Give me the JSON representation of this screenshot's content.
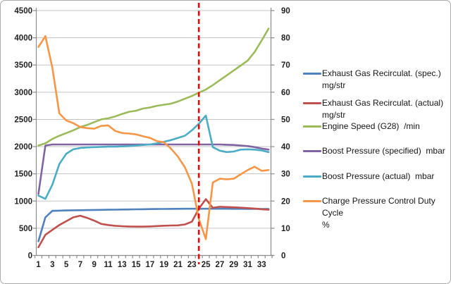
{
  "window": {
    "background": "#ffffff",
    "border_color": "#ababab"
  },
  "chart_data": {
    "type": "line",
    "title": "",
    "x": [
      1,
      2,
      3,
      4,
      5,
      6,
      7,
      8,
      9,
      10,
      11,
      12,
      13,
      14,
      15,
      16,
      17,
      18,
      19,
      20,
      21,
      22,
      23,
      24,
      25,
      26,
      27,
      28,
      29,
      30,
      31,
      32,
      33,
      34
    ],
    "x_axis": {
      "tick_labels": [
        1,
        3,
        5,
        7,
        9,
        11,
        13,
        15,
        17,
        19,
        21,
        23,
        25,
        27,
        29,
        31,
        33
      ]
    },
    "left_axis": {
      "min": 0,
      "max": 4500,
      "step": 500,
      "tick_labels": [
        4500,
        4000,
        3500,
        3000,
        2500,
        2000,
        1500,
        1000,
        500,
        0
      ]
    },
    "right_axis": {
      "min": 0,
      "max": 90,
      "step": 10,
      "tick_labels": [
        90,
        80,
        70,
        60,
        50,
        40,
        30,
        20,
        10,
        0
      ]
    },
    "grid": "horizontal",
    "legend_position": "right",
    "marker_line": {
      "x": 24,
      "color": "#FF0000",
      "style": "dashed"
    },
    "series": [
      {
        "slug": "egr-spec",
        "name": "Exhaust Gas Recirculat. (spec.) mg/str",
        "label_lines": [
          "Exhaust Gas Recirculat. (spec.)",
          "mg/str"
        ],
        "color": "#4F81BD",
        "axis": "left",
        "values": [
          260,
          700,
          820,
          824,
          827,
          830,
          832,
          834,
          836,
          838,
          840,
          842,
          844,
          846,
          848,
          850,
          852,
          854,
          855,
          856,
          857,
          858,
          858,
          858,
          858,
          858,
          858,
          858,
          857,
          857,
          856,
          856,
          855,
          855
        ]
      },
      {
        "slug": "egr-actual",
        "name": "Exhaust Gas Recirculat. (actual) mg/str",
        "label_lines": [
          "Exhaust Gas Recirculat. (actual)",
          "mg/str"
        ],
        "color": "#C0504D",
        "axis": "left",
        "values": [
          150,
          380,
          470,
          560,
          630,
          700,
          730,
          690,
          640,
          580,
          560,
          545,
          538,
          532,
          530,
          530,
          533,
          540,
          546,
          550,
          553,
          570,
          620,
          860,
          1035,
          875,
          895,
          890,
          885,
          878,
          870,
          862,
          850,
          840
        ]
      },
      {
        "slug": "engine-speed",
        "name": "Engine Speed (G28)  /min",
        "label_lines": [
          "Engine Speed (G28)  /min"
        ],
        "color": "#9BBB59",
        "axis": "left",
        "values": [
          2020,
          2060,
          2140,
          2200,
          2250,
          2300,
          2360,
          2400,
          2450,
          2500,
          2520,
          2555,
          2600,
          2640,
          2660,
          2700,
          2720,
          2750,
          2770,
          2790,
          2830,
          2880,
          2930,
          2990,
          3050,
          3130,
          3220,
          3310,
          3400,
          3490,
          3580,
          3740,
          3950,
          4170
        ]
      },
      {
        "slug": "boost-spec",
        "name": "Boost Pressure (specified)  mbar",
        "label_lines": [
          "Boost Pressure (specified)  mbar"
        ],
        "color": "#8064A2",
        "axis": "left",
        "values": [
          1130,
          2020,
          2040,
          2040,
          2040,
          2040,
          2040,
          2040,
          2040,
          2040,
          2040,
          2040,
          2040,
          2040,
          2040,
          2040,
          2040,
          2040,
          2040,
          2040,
          2040,
          2040,
          2040,
          2040,
          2040,
          2040,
          2040,
          2035,
          2030,
          2020,
          2010,
          1990,
          1965,
          1945
        ]
      },
      {
        "slug": "boost-actual",
        "name": "Boost Pressure (actual)  mbar",
        "label_lines": [
          "Boost Pressure (actual)  mbar"
        ],
        "color": "#4BACC6",
        "axis": "left",
        "values": [
          1100,
          1040,
          1300,
          1680,
          1870,
          1950,
          1975,
          1985,
          1990,
          1995,
          2000,
          2000,
          2005,
          2010,
          2020,
          2030,
          2040,
          2060,
          2090,
          2120,
          2160,
          2200,
          2300,
          2420,
          2570,
          1990,
          1925,
          1900,
          1910,
          1945,
          1950,
          1945,
          1930,
          1900
        ]
      },
      {
        "slug": "duty-cycle",
        "name": "Charge Pressure Control Duty Cycle %",
        "label_lines": [
          "Charge Pressure Control Duty Cycle",
          "%"
        ],
        "color": "#F79646",
        "axis": "right",
        "values": [
          76.6,
          80.6,
          69,
          52.2,
          49.6,
          48.6,
          47.2,
          46.8,
          46.6,
          47.6,
          47.8,
          45.8,
          45,
          44.8,
          44.5,
          43.8,
          43.2,
          42,
          41.6,
          39.3,
          36.3,
          32.4,
          26.4,
          13.4,
          6,
          26.8,
          28.2,
          28,
          28.2,
          29.8,
          31.4,
          32.6,
          31.1,
          31.4
        ]
      }
    ],
    "colors": {
      "gridline": "#c3c3c3",
      "axis_line": "#8c8c8c",
      "tick_text": "#1f1f1f",
      "marker": "#FF0000"
    }
  }
}
